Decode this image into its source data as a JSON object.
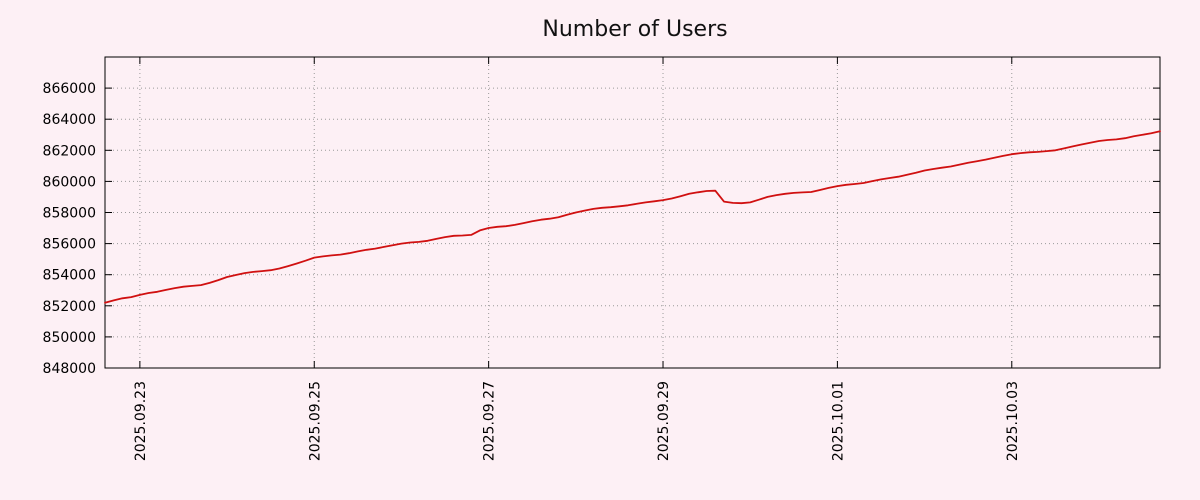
{
  "page": {
    "background_color": "#fdf0f5"
  },
  "chart_data": {
    "type": "line",
    "title": "Number of Users",
    "xlabel": "",
    "ylabel": "",
    "grid": true,
    "grid_color": "#9a9a9a",
    "axis_color": "#000000",
    "legend": "none",
    "xlim": [
      0,
      12.1
    ],
    "ylim": [
      848000,
      868000
    ],
    "y_ticks": [
      848000,
      850000,
      852000,
      854000,
      856000,
      858000,
      860000,
      862000,
      864000,
      866000
    ],
    "x_ticks": [
      {
        "label": "2025.09.23",
        "t": 0.4
      },
      {
        "label": "2025.09.25",
        "t": 2.4
      },
      {
        "label": "2025.09.27",
        "t": 4.4
      },
      {
        "label": "2025.09.29",
        "t": 6.4
      },
      {
        "label": "2025.10.01",
        "t": 8.4
      },
      {
        "label": "2025.10.03",
        "t": 10.4
      }
    ],
    "x_unit": "days from left edge of plot; tick t values align date labels",
    "series": [
      {
        "name": "users",
        "color": "#d01010",
        "x0": 0,
        "dx": 0.1,
        "values": [
          852200,
          852350,
          852480,
          852560,
          852700,
          852820,
          852900,
          853020,
          853140,
          853230,
          853280,
          853330,
          853470,
          853650,
          853850,
          853980,
          854100,
          854180,
          854230,
          854290,
          854400,
          854550,
          854720,
          854900,
          855100,
          855180,
          855240,
          855290,
          855380,
          855500,
          855600,
          855680,
          855790,
          855900,
          856000,
          856070,
          856110,
          856180,
          856300,
          856420,
          856500,
          856520,
          856560,
          856850,
          857000,
          857080,
          857120,
          857200,
          857320,
          857440,
          857540,
          857600,
          857700,
          857850,
          858000,
          858120,
          858230,
          858300,
          858340,
          858400,
          858460,
          858560,
          858650,
          858720,
          858800,
          858900,
          859050,
          859200,
          859300,
          859380,
          859400,
          858700,
          858620,
          858600,
          858650,
          858820,
          859000,
          859120,
          859200,
          859260,
          859290,
          859320,
          859450,
          859580,
          859700,
          859780,
          859830,
          859900,
          860020,
          860130,
          860220,
          860300,
          860430,
          860560,
          860700,
          860800,
          860880,
          860960,
          861080,
          861200,
          861300,
          861400,
          861520,
          861640,
          861750,
          861820,
          861870,
          861900,
          861950,
          862000,
          862120,
          862250,
          862370,
          862490,
          862600,
          862660,
          862700,
          862780,
          862900,
          863000,
          863100,
          863220
        ]
      }
    ]
  }
}
